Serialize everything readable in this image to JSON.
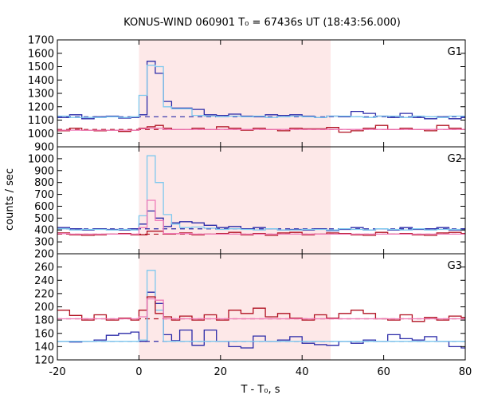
{
  "chart_data": {
    "type": "line",
    "title": "KONUS-WIND 060901 T₀ = 67436s UT (18:43:56.000)",
    "xlabel": "T - T₀, s",
    "ylabel": "counts / sec",
    "xlim": [
      -20,
      80
    ],
    "x_ticks": [
      "-20",
      "0",
      "20",
      "40",
      "60",
      "80"
    ],
    "x_tick_values": [
      -20,
      0,
      20,
      40,
      60,
      80
    ],
    "shaded_interval": [
      0,
      47
    ],
    "colors": {
      "shade": "#fde8e8",
      "dark_blue": "#2a2aa8",
      "light_blue": "#7ec8ee",
      "dark_red": "#b01020",
      "pink": "#f07ab8",
      "frame": "#000000"
    },
    "bin_edges": [
      -20,
      -17,
      -14,
      -11,
      -8,
      -5,
      -2,
      0,
      2,
      4,
      6,
      8,
      10,
      13,
      16,
      19,
      22,
      25,
      28,
      31,
      34,
      37,
      40,
      43,
      46,
      49,
      52,
      55,
      58,
      61,
      64,
      67,
      70,
      73,
      76,
      79,
      80
    ],
    "panels": [
      {
        "label": "G1",
        "ylim": [
          900,
          1700
        ],
        "y_ticks": [
          "900",
          "1000",
          "1100",
          "1200",
          "1300",
          "1400",
          "1500",
          "1600",
          "1700"
        ],
        "y_tick_values": [
          900,
          1000,
          1100,
          1200,
          1300,
          1400,
          1500,
          1600,
          1700
        ],
        "series": [
          {
            "color_key": "dark_blue",
            "values": [
              1120,
              1140,
              1110,
              1125,
              1130,
              1115,
              1120,
              1140,
              1540,
              1450,
              1240,
              1190,
              1190,
              1180,
              1140,
              1135,
              1145,
              1130,
              1125,
              1140,
              1135,
              1140,
              1130,
              1120,
              1130,
              1125,
              1165,
              1150,
              1130,
              1120,
              1150,
              1120,
              1110,
              1125,
              1110,
              1120
            ]
          },
          {
            "color_key": "light_blue",
            "values": [
              1130,
              1120,
              1120,
              1120,
              1125,
              1120,
              1125,
              1285,
              1510,
              1500,
              1200,
              1185,
              1185,
              1135,
              1130,
              1125,
              1130,
              1125,
              1130,
              1120,
              1125,
              1130,
              1125,
              1120,
              1130,
              1130,
              1125,
              1120,
              1130,
              1130,
              1120,
              1130,
              1125,
              1120,
              1130,
              1130
            ]
          },
          {
            "color_key": "dark_red",
            "values": [
              1020,
              1040,
              1025,
              1020,
              1025,
              1015,
              1025,
              1040,
              1050,
              1060,
              1040,
              1030,
              1030,
              1040,
              1030,
              1050,
              1040,
              1025,
              1040,
              1030,
              1020,
              1040,
              1035,
              1035,
              1045,
              1010,
              1020,
              1040,
              1060,
              1030,
              1040,
              1030,
              1020,
              1060,
              1040,
              1030
            ]
          },
          {
            "color_key": "pink",
            "values": [
              1025,
              1025,
              1025,
              1025,
              1025,
              1025,
              1025,
              1035,
              1040,
              1040,
              1030,
              1030,
              1030,
              1030,
              1030,
              1030,
              1030,
              1030,
              1030,
              1030,
              1030,
              1030,
              1030,
              1030,
              1030,
              1030,
              1030,
              1030,
              1030,
              1030,
              1030,
              1030,
              1030,
              1030,
              1030,
              1030
            ]
          }
        ],
        "backgrounds": [
          {
            "color_key": "dark_blue",
            "value": 1125
          },
          {
            "color_key": "dark_red",
            "value": 1030
          }
        ]
      },
      {
        "label": "G2",
        "ylim": [
          200,
          1100
        ],
        "y_ticks": [
          "200",
          "300",
          "400",
          "500",
          "600",
          "700",
          "800",
          "900",
          "1000"
        ],
        "y_tick_values": [
          200,
          300,
          400,
          500,
          600,
          700,
          800,
          900,
          1000
        ],
        "series": [
          {
            "color_key": "dark_blue",
            "values": [
              420,
              410,
              400,
              410,
              405,
              400,
              410,
              450,
              560,
              500,
              430,
              460,
              470,
              460,
              440,
              420,
              430,
              410,
              420,
              410,
              400,
              405,
              400,
              410,
              395,
              405,
              420,
              400,
              410,
              400,
              420,
              405,
              410,
              420,
              400,
              410
            ]
          },
          {
            "color_key": "light_blue",
            "values": [
              410,
              400,
              405,
              405,
              400,
              405,
              400,
              520,
              1025,
              800,
              530,
              450,
              420,
              425,
              415,
              405,
              410,
              405,
              400,
              410,
              400,
              400,
              405,
              405,
              400,
              410,
              405,
              400,
              410,
              405,
              400,
              410,
              400,
              405,
              405,
              400
            ]
          },
          {
            "color_key": "dark_red",
            "values": [
              375,
              360,
              355,
              360,
              365,
              370,
              360,
              360,
              390,
              390,
              365,
              370,
              375,
              360,
              365,
              370,
              380,
              360,
              370,
              355,
              375,
              380,
              360,
              365,
              375,
              370,
              360,
              355,
              380,
              365,
              370,
              360,
              355,
              375,
              380,
              370
            ]
          },
          {
            "color_key": "pink",
            "values": [
              370,
              365,
              365,
              365,
              365,
              365,
              365,
              420,
              650,
              480,
              370,
              370,
              370,
              365,
              365,
              365,
              365,
              365,
              365,
              365,
              365,
              365,
              365,
              365,
              365,
              365,
              365,
              365,
              365,
              365,
              365,
              365,
              365,
              365,
              365,
              365
            ]
          }
        ],
        "backgrounds": [
          {
            "color_key": "dark_blue",
            "value": 410
          },
          {
            "color_key": "dark_red",
            "value": 365
          }
        ]
      },
      {
        "label": "G3",
        "ylim": [
          120,
          280
        ],
        "y_ticks": [
          "120",
          "140",
          "160",
          "180",
          "200",
          "220",
          "240",
          "260"
        ],
        "y_tick_values": [
          120,
          140,
          160,
          180,
          200,
          220,
          240,
          260
        ],
        "series": [
          {
            "color_key": "dark_blue",
            "values": [
              148,
              147,
              148,
              150,
              157,
              160,
              162,
              148,
              222,
              205,
              158,
              149,
              165,
              142,
              165,
              148,
              140,
              138,
              156,
              148,
              150,
              155,
              145,
              143,
              142,
              148,
              145,
              150,
              148,
              158,
              152,
              150,
              155,
              148,
              140,
              138
            ]
          },
          {
            "color_key": "light_blue",
            "values": [
              148,
              148,
              148,
              148,
              148,
              148,
              148,
              150,
              255,
              195,
              148,
              148,
              148,
              148,
              148,
              148,
              148,
              148,
              148,
              148,
              148,
              148,
              148,
              148,
              148,
              148,
              148,
              148,
              148,
              148,
              148,
              148,
              148,
              148,
              148,
              148
            ]
          },
          {
            "color_key": "dark_red",
            "values": [
              195,
              187,
              180,
              188,
              180,
              183,
              180,
              195,
              215,
              190,
              185,
              180,
              186,
              180,
              188,
              180,
              195,
              190,
              198,
              185,
              190,
              183,
              180,
              188,
              183,
              190,
              195,
              190,
              182,
              180,
              188,
              178,
              184,
              180,
              186,
              184
            ]
          },
          {
            "color_key": "pink",
            "values": [
              182,
              182,
              182,
              182,
              182,
              182,
              182,
              185,
              212,
              210,
              182,
              182,
              182,
              182,
              182,
              182,
              182,
              182,
              182,
              182,
              182,
              182,
              182,
              182,
              182,
              182,
              182,
              182,
              182,
              182,
              182,
              182,
              182,
              182,
              182,
              182
            ]
          }
        ],
        "backgrounds": [
          {
            "color_key": "dark_blue",
            "value": 148
          },
          {
            "color_key": "dark_red",
            "value": 182
          }
        ]
      }
    ]
  }
}
